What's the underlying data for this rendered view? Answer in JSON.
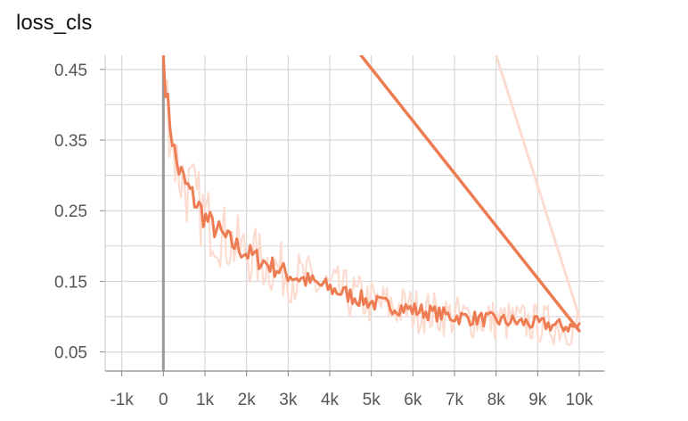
{
  "card": {
    "title": "loss_cls"
  },
  "chart_data": {
    "type": "line",
    "title": "loss_cls",
    "xlabel": "",
    "ylabel": "",
    "xlim": [
      -1400,
      10600
    ],
    "ylim": [
      0.023,
      0.47
    ],
    "x_ticks": [
      -1000,
      0,
      1000,
      2000,
      3000,
      4000,
      5000,
      6000,
      7000,
      8000,
      9000,
      10000
    ],
    "x_tick_labels": [
      "-1k",
      "0",
      "1k",
      "2k",
      "3k",
      "4k",
      "5k",
      "6k",
      "7k",
      "8k",
      "9k",
      "10k"
    ],
    "y_ticks": [
      0.05,
      0.15,
      0.25,
      0.35,
      0.45
    ],
    "y_tick_labels": [
      "0.05",
      "0.15",
      "0.25",
      "0.35",
      "0.45"
    ],
    "grid": true,
    "zero_line_x": 0,
    "colors": {
      "smoothed": "#ee7c52",
      "raw": "#fcdcd0",
      "zero_line": "#999999",
      "grid": "#d8d8d8"
    },
    "series": [
      {
        "role": "smoothed",
        "x": [
          0,
          100,
          200,
          300,
          500,
          800,
          1000,
          1500,
          2000,
          2500,
          3000,
          3500,
          4000,
          5000,
          6000,
          7000,
          8000,
          9000,
          9500,
          10000
        ],
        "y": [
          0.47,
          0.4,
          0.36,
          0.32,
          0.29,
          0.26,
          0.24,
          0.21,
          0.19,
          0.175,
          0.16,
          0.15,
          0.14,
          0.12,
          0.11,
          0.1,
          0.095,
          0.09,
          0.087,
          0.085
        ]
      },
      {
        "role": "raw",
        "x": [
          0,
          100,
          200,
          300,
          500,
          800,
          1000,
          1500,
          2000,
          2500,
          3000,
          3500,
          4000,
          5000,
          6000,
          7000,
          8000,
          9000,
          9500,
          10000
        ],
        "y": [
          0.47,
          0.4,
          0.36,
          0.32,
          0.29,
          0.26,
          0.24,
          0.21,
          0.19,
          0.175,
          0.16,
          0.15,
          0.14,
          0.12,
          0.11,
          0.1,
          0.095,
          0.09,
          0.087,
          0.085
        ]
      },
      {
        "role": "smoothed-wraparound",
        "x": [
          4750,
          10000
        ],
        "y": [
          0.47,
          0.08
        ]
      },
      {
        "role": "raw-wraparound",
        "x": [
          8000,
          10000
        ],
        "y": [
          0.47,
          0.1
        ]
      }
    ]
  }
}
